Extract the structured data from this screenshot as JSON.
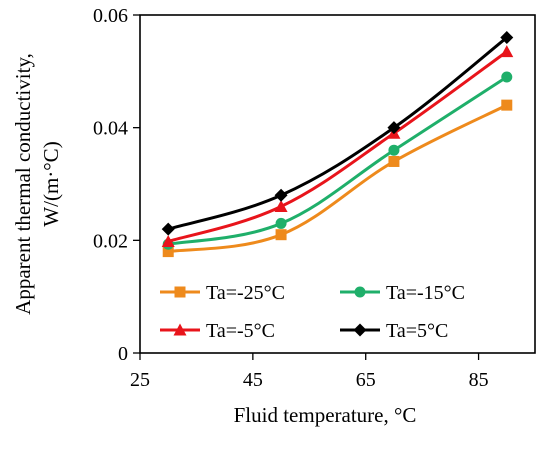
{
  "chart_data": {
    "type": "line",
    "xlabel": "Fluid temperature, °C",
    "ylabel_line1": "Apparent  thermal  conductivity,",
    "ylabel_line2": "W/(m·°C)",
    "xlim": [
      25,
      95
    ],
    "ylim": [
      0,
      0.06
    ],
    "x_ticks": [
      "25",
      "45",
      "65",
      "85"
    ],
    "y_ticks": [
      "0",
      "0.02",
      "0.04",
      "0.06"
    ],
    "grid": false,
    "legend_position": "bottom-inside",
    "x": [
      30,
      50,
      70,
      90
    ],
    "series": [
      {
        "name": "Ta=-25°C",
        "marker": "square",
        "color": "#ee8a1c",
        "values": [
          0.018,
          0.021,
          0.034,
          0.044
        ]
      },
      {
        "name": "Ta=-15°C",
        "marker": "circle",
        "color": "#1faf6a",
        "values": [
          0.0193,
          0.023,
          0.036,
          0.049
        ]
      },
      {
        "name": "Ta=-5°C",
        "marker": "triangle",
        "color": "#e8141b",
        "values": [
          0.0198,
          0.026,
          0.039,
          0.0535
        ]
      },
      {
        "name": "Ta=5°C",
        "marker": "diamond",
        "color": "#000000",
        "values": [
          0.022,
          0.028,
          0.04,
          0.056
        ]
      }
    ]
  }
}
